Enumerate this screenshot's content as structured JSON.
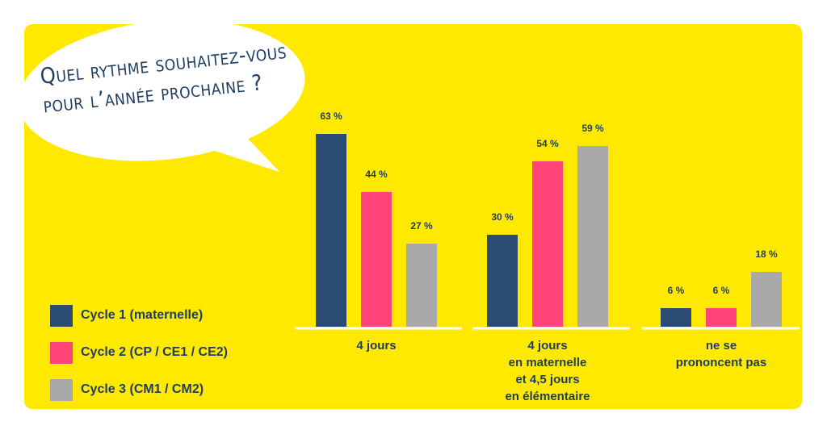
{
  "chart_data": {
    "type": "bar",
    "title": "Quel rythme souhaitez-vous\npour l’année prochaine ?",
    "categories": [
      "4 jours",
      "4 jours\nen maternelle\net 4,5 jours\nen élémentaire",
      "ne se\nprononcent pas"
    ],
    "series": [
      {
        "name": "Cycle 1 (maternelle)",
        "color": "#2b4a74",
        "values": [
          63,
          30,
          6
        ],
        "value_labels": [
          "63 %",
          "30 %",
          "6 %"
        ]
      },
      {
        "name": "Cycle 2 (CP / CE1 / CE2)",
        "color": "#ff4479",
        "values": [
          44,
          54,
          6
        ],
        "value_labels": [
          "44 %",
          "54 %",
          "6 %"
        ]
      },
      {
        "name": "Cycle 3 (CM1 / CM2)",
        "color": "#a9a9a9",
        "values": [
          27,
          59,
          18
        ],
        "value_labels": [
          "27 %",
          "59 %",
          "18 %"
        ]
      }
    ]
  }
}
